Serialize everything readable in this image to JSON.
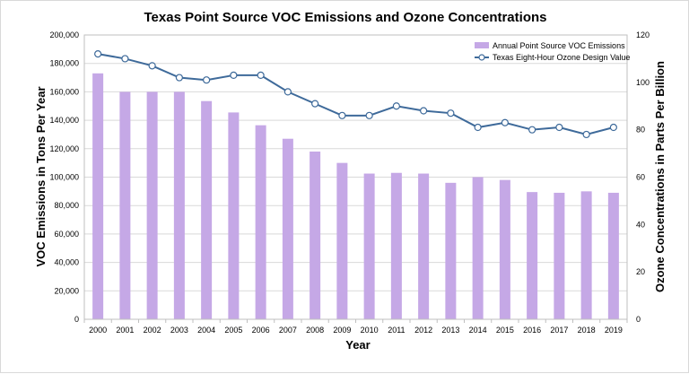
{
  "chart_data": {
    "type": "bar+line",
    "title": "Texas Point Source VOC Emissions and Ozone Concentrations",
    "xlabel": "Year",
    "ylabel_left": "VOC Emissions  in Tons Per Year",
    "ylabel_right": "Ozone Concentrations  in Parts Per Billion",
    "categories": [
      "2000",
      "2001",
      "2002",
      "2003",
      "2004",
      "2005",
      "2006",
      "2007",
      "2008",
      "2009",
      "2010",
      "2011",
      "2012",
      "2013",
      "2014",
      "2015",
      "2016",
      "2017",
      "2018",
      "2019"
    ],
    "left_axis": {
      "min": 0,
      "max": 200000,
      "step": 20000,
      "tick_labels": [
        "0",
        "20,000",
        "40,000",
        "60,000",
        "80,000",
        "100,000",
        "120,000",
        "140,000",
        "160,000",
        "180,000",
        "200,000"
      ]
    },
    "right_axis": {
      "min": 0,
      "max": 120,
      "step": 20,
      "tick_labels": [
        "0",
        "20",
        "40",
        "60",
        "80",
        "100",
        "120"
      ]
    },
    "series": [
      {
        "name": "Annual Point Source VOC Emissions",
        "kind": "bar",
        "axis": "left",
        "color": "#c5a8e6",
        "values": [
          173000,
          160000,
          160000,
          160000,
          153500,
          145500,
          136500,
          127000,
          118000,
          110000,
          102500,
          103000,
          102500,
          96000,
          100000,
          98000,
          89500,
          89000,
          90000,
          89000
        ]
      },
      {
        "name": "Texas Eight-Hour Ozone Design Value",
        "kind": "line",
        "axis": "right",
        "color": "#3e6a9a",
        "values": [
          112,
          110,
          107,
          102,
          101,
          103,
          103,
          96,
          91,
          86,
          86,
          90,
          88,
          87,
          81,
          83,
          80,
          81,
          78,
          81
        ]
      }
    ],
    "legend_position": "top-right",
    "grid": true
  }
}
